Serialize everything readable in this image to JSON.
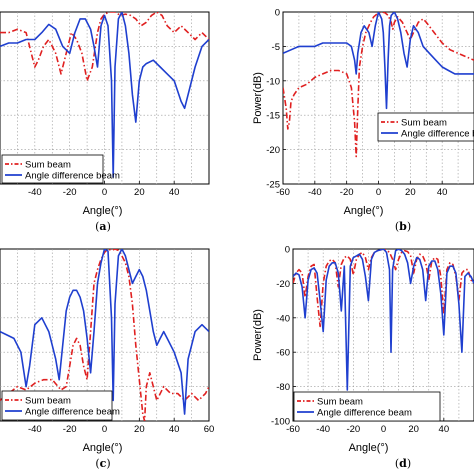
{
  "colors": {
    "sum": "#e02020",
    "diff": "#1f3fcf",
    "grid": "#9a9a9a"
  },
  "chart_data": [
    {
      "id": "a",
      "type": "line",
      "panel_label": "a",
      "xlabel": "Angle(°)",
      "ylabel": "",
      "xlim": [
        -60,
        60
      ],
      "ylim": [
        -25,
        0
      ],
      "xticks": [
        -40,
        -20,
        0,
        20,
        40
      ],
      "yticks": [],
      "grid": true,
      "legend_position": "bottom-left",
      "series": [
        {
          "name": "Sum beam",
          "style": "dashdot",
          "x": [
            -60,
            -55,
            -50,
            -45,
            -42,
            -40,
            -38,
            -35,
            -32,
            -28,
            -25,
            -22,
            -19,
            -16,
            -13,
            -10,
            -7,
            -4,
            -2,
            0,
            3,
            6,
            9,
            12,
            15,
            18,
            21,
            24,
            27,
            30,
            33,
            36,
            40,
            44,
            48,
            52,
            56,
            60
          ],
          "y": [
            -3,
            -3,
            -2.5,
            -3,
            -6,
            -8,
            -7,
            -5,
            -4,
            -6,
            -9,
            -6,
            -3,
            -4,
            -6,
            -10,
            -8,
            -3,
            -1,
            -0.3,
            0,
            0,
            -0.5,
            -0.3,
            -0.5,
            -1,
            -2,
            -1.5,
            -0.5,
            0,
            -0.5,
            -2,
            -3,
            -2,
            -3,
            -4,
            -3,
            -4
          ]
        },
        {
          "name": "Angle difference beam",
          "style": "solid",
          "x": [
            -60,
            -55,
            -50,
            -45,
            -40,
            -36,
            -32,
            -28,
            -24,
            -20,
            -17,
            -14,
            -11,
            -8,
            -6,
            -4,
            -2,
            0,
            2,
            4,
            5,
            6,
            8,
            10,
            12,
            14,
            16,
            18,
            20,
            22,
            24,
            28,
            32,
            36,
            40,
            44,
            46,
            48,
            52,
            56,
            60
          ],
          "y": [
            -5,
            -4.5,
            -4.5,
            -4,
            -4,
            -3,
            -1.8,
            -2.5,
            -5,
            -6,
            -3,
            -1,
            -1,
            -2.5,
            -5,
            -8,
            -2,
            -0.5,
            -2,
            -10,
            -24,
            -8,
            -1,
            0,
            -2,
            -6,
            -12,
            -16,
            -10,
            -8,
            -7.5,
            -7,
            -8,
            -9,
            -10,
            -13,
            -14,
            -12,
            -8,
            -5,
            -4
          ]
        }
      ]
    },
    {
      "id": "b",
      "type": "line",
      "panel_label": "b",
      "xlabel": "Angle(°)",
      "ylabel": "Power(dB)",
      "xlim": [
        -60,
        60
      ],
      "ylim": [
        -25,
        0
      ],
      "xticks": [
        -60,
        -40,
        -20,
        0,
        20,
        40
      ],
      "yticks": [
        0,
        -5,
        -10,
        -15,
        -20,
        -25
      ],
      "grid": true,
      "legend_position": "bottom-right",
      "series": [
        {
          "name": "Sum beam",
          "style": "dashdot",
          "x": [
            -60,
            -58,
            -57,
            -56,
            -55,
            -53,
            -50,
            -45,
            -40,
            -35,
            -30,
            -25,
            -20,
            -17,
            -15,
            -14,
            -13,
            -12,
            -10,
            -8,
            -5,
            -3,
            0,
            2,
            4,
            6,
            8,
            9,
            10,
            12,
            15,
            18,
            20,
            22,
            25,
            28,
            30,
            35,
            40,
            45,
            50,
            55,
            60
          ],
          "y": [
            -11,
            -14,
            -17,
            -16,
            -13,
            -12,
            -11,
            -10.5,
            -9.5,
            -9,
            -8.5,
            -8.5,
            -9,
            -11,
            -16,
            -21,
            -14,
            -8,
            -5,
            -3,
            -1.5,
            -0.7,
            -0.1,
            0,
            -0.1,
            -0.5,
            -1.5,
            -2.5,
            -1.5,
            -0.7,
            -1.5,
            -3,
            -4,
            -3,
            -1.5,
            -1,
            -1.5,
            -3,
            -4.5,
            -5.5,
            -6,
            -6.5,
            -7
          ]
        },
        {
          "name": "Angle difference beam",
          "style": "solid",
          "x": [
            -60,
            -55,
            -50,
            -45,
            -40,
            -35,
            -30,
            -25,
            -20,
            -17,
            -15,
            -14,
            -13,
            -11,
            -9,
            -6,
            -4,
            -2,
            0,
            2,
            3,
            4,
            5,
            6,
            7,
            8,
            10,
            12,
            14,
            16,
            18,
            20,
            22,
            25,
            28,
            32,
            36,
            40,
            44,
            48,
            52,
            56,
            60
          ],
          "y": [
            -6,
            -5.5,
            -5,
            -5,
            -5,
            -4.5,
            -4.5,
            -4.5,
            -4.5,
            -5,
            -7,
            -9,
            -6,
            -3,
            -2,
            -3,
            -5,
            -2,
            0,
            -1,
            -3,
            -8,
            -14,
            -7,
            -2,
            -0.5,
            0,
            -1,
            -3,
            -6,
            -8,
            -4,
            -2,
            -3,
            -5,
            -6,
            -7,
            -8,
            -8.5,
            -9,
            -9,
            -9,
            -9
          ]
        }
      ]
    },
    {
      "id": "c",
      "type": "line",
      "panel_label": "c",
      "xlabel": "Angle(°)",
      "ylabel": "",
      "xlim": [
        -60,
        60
      ],
      "ylim": [
        -25,
        0
      ],
      "xticks": [
        -40,
        -20,
        0,
        20,
        40,
        60
      ],
      "yticks": [],
      "grid": true,
      "legend_position": "bottom-left",
      "series": [
        {
          "name": "Sum beam",
          "style": "dashdot",
          "x": [
            -60,
            -55,
            -50,
            -45,
            -40,
            -35,
            -30,
            -25,
            -22,
            -20,
            -18,
            -16,
            -14,
            -12,
            -10,
            -8,
            -6,
            -4,
            -2,
            0,
            2,
            4,
            6,
            8,
            10,
            12,
            14,
            16,
            18,
            20,
            22,
            23,
            24,
            26,
            28,
            30,
            34,
            38,
            42,
            46,
            50,
            54,
            58,
            60
          ],
          "y": [
            -22,
            -21,
            -20,
            -20.5,
            -19.5,
            -19,
            -19,
            -20.5,
            -20,
            -17,
            -14,
            -13,
            -14,
            -17,
            -19,
            -12,
            -5,
            -3,
            -1.5,
            -0.5,
            0,
            -0.2,
            0,
            -0.2,
            -1,
            -2,
            -4,
            -8,
            -14,
            -19,
            -24,
            -25,
            -20,
            -18,
            -20,
            -22,
            -20,
            -21,
            -21,
            -22,
            -21,
            -22,
            -21,
            -20
          ]
        },
        {
          "name": "Angle difference beam",
          "style": "solid",
          "x": [
            -60,
            -56,
            -52,
            -48,
            -45,
            -43,
            -40,
            -36,
            -32,
            -28,
            -26,
            -24,
            -22,
            -20,
            -18,
            -16,
            -14,
            -12,
            -10,
            -8,
            -6,
            -4,
            -2,
            0,
            2,
            4,
            5,
            6,
            8,
            10,
            12,
            14,
            16,
            18,
            20,
            22,
            24,
            26,
            28,
            30,
            32,
            34,
            36,
            40,
            44,
            46,
            48,
            52,
            56,
            60
          ],
          "y": [
            -12,
            -12.5,
            -13,
            -15,
            -20,
            -17,
            -11,
            -10,
            -12,
            -16,
            -19,
            -14,
            -9,
            -7,
            -6,
            -6,
            -7,
            -9,
            -13,
            -18,
            -12,
            -5,
            -2,
            0,
            -0.3,
            -10,
            -22,
            -8,
            -1,
            0,
            -1,
            -3,
            -5,
            -4,
            -3,
            -4,
            -6,
            -9,
            -12,
            -14,
            -13,
            -12,
            -13,
            -15,
            -18,
            -24,
            -16,
            -12,
            -11,
            -12
          ]
        }
      ]
    },
    {
      "id": "d",
      "type": "line",
      "panel_label": "d",
      "xlabel": "Angle(°)",
      "ylabel": "Power(dB)",
      "xlim": [
        -60,
        60
      ],
      "ylim": [
        -100,
        0
      ],
      "xticks": [
        -60,
        -40,
        -20,
        0,
        20,
        40
      ],
      "yticks": [
        0,
        -20,
        -40,
        -60,
        -80,
        -100
      ],
      "grid": true,
      "legend_position": "bottom-left",
      "series": [
        {
          "name": "Sum beam",
          "style": "dashdot",
          "x": [
            -60,
            -58,
            -56,
            -54,
            -52,
            -50,
            -48,
            -46,
            -44,
            -42,
            -40,
            -38,
            -36,
            -34,
            -32,
            -30,
            -28,
            -26,
            -24,
            -22,
            -20,
            -18,
            -16,
            -14,
            -12,
            -10,
            -8,
            -6,
            -4,
            -2,
            0,
            2,
            4,
            6,
            8,
            10,
            12,
            14,
            16,
            18,
            20,
            22,
            24,
            26,
            28,
            30,
            32,
            34,
            36,
            38,
            40,
            42,
            44,
            46,
            48,
            50,
            52,
            54,
            56,
            58,
            60
          ],
          "y": [
            -20,
            -14,
            -12,
            -14,
            -28,
            -16,
            -10,
            -9,
            -28,
            -45,
            -20,
            -10,
            -7,
            -6,
            -8,
            -22,
            -9,
            -5,
            -4,
            -6,
            -15,
            -6,
            -3,
            -2,
            -5,
            -12,
            -5,
            -2,
            -1,
            -0.5,
            0,
            -0.5,
            -2,
            -6,
            -12,
            -6,
            -2,
            -1,
            -1.5,
            -4,
            -14,
            -6,
            -3,
            -4,
            -8,
            -18,
            -7,
            -5,
            -6,
            -16,
            -38,
            -12,
            -8,
            -9,
            -16,
            -30,
            -14,
            -12,
            -12,
            -18,
            -20
          ]
        },
        {
          "name": "Angle difference beam",
          "style": "solid",
          "x": [
            -60,
            -58,
            -56,
            -54,
            -52,
            -50,
            -48,
            -46,
            -44,
            -42,
            -40,
            -38,
            -36,
            -34,
            -32,
            -30,
            -28,
            -26,
            -24,
            -22,
            -20,
            -18,
            -16,
            -14,
            -12,
            -10,
            -8,
            -6,
            -4,
            -2,
            0,
            2,
            4,
            5,
            6,
            8,
            10,
            12,
            14,
            16,
            18,
            20,
            22,
            24,
            26,
            28,
            30,
            32,
            34,
            36,
            38,
            40,
            42,
            44,
            46,
            48,
            50,
            52,
            54,
            56,
            58,
            60
          ],
          "y": [
            -16,
            -14,
            -15,
            -22,
            -40,
            -18,
            -12,
            -11,
            -14,
            -30,
            -48,
            -18,
            -10,
            -8,
            -8,
            -14,
            -36,
            -10,
            -82,
            -10,
            -5,
            -4,
            -3,
            -6,
            -16,
            -30,
            -6,
            -2,
            -1,
            -0.5,
            0,
            -2,
            -12,
            -60,
            -12,
            -1,
            0,
            -1,
            -3,
            -8,
            -20,
            -10,
            -5,
            -6,
            -12,
            -30,
            -10,
            -7,
            -7,
            -12,
            -26,
            -50,
            -14,
            -10,
            -10,
            -14,
            -32,
            -60,
            -16,
            -14,
            -16,
            -20
          ]
        }
      ]
    }
  ]
}
